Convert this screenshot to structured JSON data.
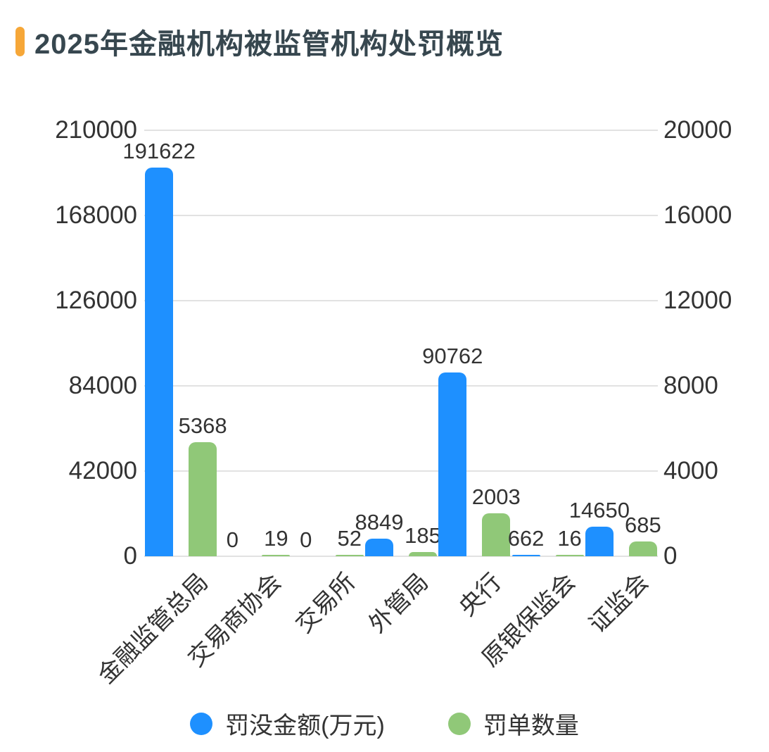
{
  "title": "2025年金融机构被监管机构处罚概览",
  "colors": {
    "accent": "#F6A738",
    "title_text": "#37474F",
    "axis_text": "#333333",
    "label_text": "#333333",
    "gridline": "#E2E2E2",
    "bar_blue": "#1E90FF",
    "bar_green": "#90C878"
  },
  "chart_data": {
    "type": "bar",
    "title": "2025年金融机构被监管机构处罚概览",
    "categories": [
      "金融监管总局",
      "交易商协会",
      "交易所",
      "外管局",
      "央行",
      "原银保监会",
      "证监会"
    ],
    "series": [
      {
        "name": "罚没金额(万元)",
        "axis": "left",
        "color": "#1E90FF",
        "values": [
          191622,
          0,
          0,
          8849,
          90762,
          662,
          14650
        ]
      },
      {
        "name": "罚单数量",
        "axis": "right",
        "color": "#90C878",
        "values": [
          5368,
          19,
          52,
          185,
          2003,
          16,
          685
        ]
      }
    ],
    "left_axis": {
      "min": 0,
      "max": 210000,
      "ticks": [
        0,
        42000,
        84000,
        126000,
        168000,
        210000
      ]
    },
    "right_axis": {
      "min": 0,
      "max": 20000,
      "ticks": [
        0,
        4000,
        8000,
        12000,
        16000,
        20000
      ]
    },
    "grid": true,
    "legend_position": "bottom"
  }
}
